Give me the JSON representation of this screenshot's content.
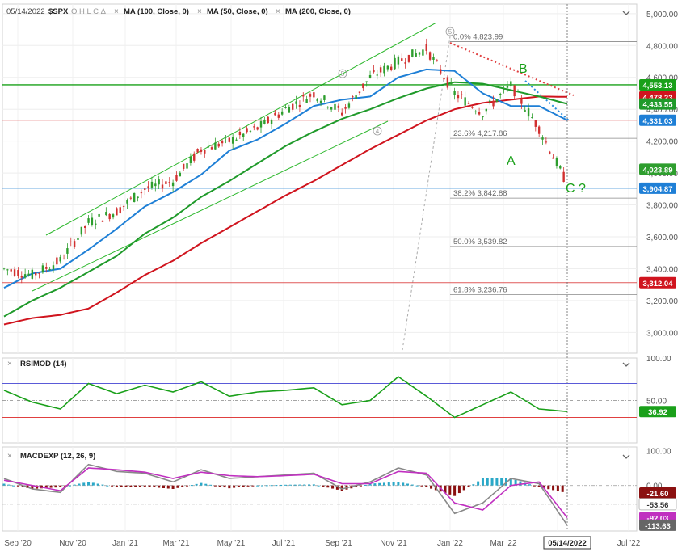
{
  "header": {
    "date": "05/14/2022",
    "symbol": "$SPX",
    "ohlc": "O H L C Δ",
    "close_x": "×",
    "ma100": "MA (100, Close, 0)",
    "ma50": "MA (50, Close, 0)",
    "ma200": "MA (200, Close, 0)",
    "chevron": "chevron-down-icon"
  },
  "colors": {
    "price_up": "#2e9e2e",
    "price_down": "#d23030",
    "ma50": "#1e7fd6",
    "ma100": "#1f9a2a",
    "ma200": "#d0141e",
    "hline_green": "#19a019",
    "hline_red": "#e05a5a",
    "hline_blue": "#3a8fd8",
    "rsi": "#1aa01a",
    "rsi_ob": "#5a5ad8",
    "rsi_os": "#e04040",
    "macd": "#888888",
    "signal": "#c030c0"
  },
  "main_axis": {
    "ticks": [
      "5,000.00",
      "4,800.00",
      "4,600.00",
      "4,400.00",
      "4,200.00",
      "4,000.00",
      "3,800.00",
      "3,600.00",
      "3,400.00",
      "3,200.00",
      "3,000.00"
    ],
    "tick_values": [
      5000,
      4800,
      4600,
      4400,
      4200,
      4000,
      3800,
      3600,
      3400,
      3200,
      3000
    ],
    "ylim": [
      2870,
      5060
    ]
  },
  "x_axis": {
    "labels": [
      "Sep '20",
      "Nov '20",
      "Jan '21",
      "Mar '21",
      "May '21",
      "Jul '21",
      "Sep '21",
      "Nov '21",
      "Jan '22",
      "Mar '22",
      "May '22",
      "Jul '22"
    ],
    "cursor_label": "05/14/2022"
  },
  "price_tags": [
    {
      "text": "4,553.13",
      "value": 4553.13,
      "color": "#19a019"
    },
    {
      "text": "4,478.23",
      "value": 4478.23,
      "color": "#d0141e"
    },
    {
      "text": "4,433.55",
      "value": 4433.55,
      "color": "#1f9a2a"
    },
    {
      "text": "4,331.03",
      "value": 4331.03,
      "color": "#1e7fd6"
    },
    {
      "text": "4,023.89",
      "value": 4023.89,
      "color": "#2e9e2e"
    },
    {
      "text": "3,904.87",
      "value": 3904.87,
      "color": "#1e7fd6"
    },
    {
      "text": "3,312.04",
      "value": 3312.04,
      "color": "#d0141e"
    }
  ],
  "fib_levels": [
    {
      "text": "0.0% 4,823.99",
      "value": 4823.99
    },
    {
      "text": "23.6% 4,217.86",
      "value": 4217.86
    },
    {
      "text": "38.2% 3,842.88",
      "value": 3842.88
    },
    {
      "text": "50.0% 3,539.82",
      "value": 3539.82
    },
    {
      "text": "61.8% 3,236.76",
      "value": 3236.76
    }
  ],
  "annotations": {
    "wave_b": "B",
    "wave_a": "A",
    "wave_c": "C ?",
    "wave5_top": "5",
    "wave5_mid": "5",
    "wave4": "4"
  },
  "rsi_panel": {
    "title": "RSIMOD (14)",
    "ticks": [
      "100.00",
      "50.00"
    ],
    "current": "36.92",
    "overbought": 70,
    "oversold": 30,
    "ylim": [
      0,
      100
    ]
  },
  "macd_panel": {
    "title": "MACDEXP (12, 26, 9)",
    "ticks": [
      "100.00",
      "0.00"
    ],
    "tags": [
      {
        "text": "-21.60",
        "color": "#8b1010"
      },
      {
        "text": "-53.56",
        "color": "#ffffff"
      },
      {
        "text": "-92.03",
        "color": "#c030c0"
      },
      {
        "text": "-113.63",
        "color": "#666666"
      }
    ],
    "ylim": [
      -130,
      110
    ]
  },
  "chart_data": {
    "type": "line",
    "title": "$SPX",
    "x": [
      "Sep '20",
      "Oct '20",
      "Nov '20",
      "Dec '20",
      "Jan '21",
      "Feb '21",
      "Mar '21",
      "Apr '21",
      "May '21",
      "Jun '21",
      "Jul '21",
      "Aug '21",
      "Sep '21",
      "Oct '21",
      "Nov '21",
      "Dec '21",
      "Jan '22",
      "Feb '22",
      "Mar '22",
      "Apr '22",
      "May '22"
    ],
    "series": [
      {
        "name": "$SPX",
        "values": [
          3400,
          3360,
          3450,
          3690,
          3760,
          3900,
          3950,
          4150,
          4200,
          4280,
          4400,
          4500,
          4380,
          4600,
          4700,
          4780,
          4500,
          4380,
          4550,
          4280,
          3930
        ]
      },
      {
        "name": "MA (50, Close, 0)",
        "values": [
          3280,
          3370,
          3400,
          3520,
          3650,
          3790,
          3880,
          3990,
          4140,
          4210,
          4310,
          4420,
          4460,
          4480,
          4600,
          4650,
          4640,
          4500,
          4420,
          4420,
          4331
        ]
      },
      {
        "name": "MA (100, Close, 0)",
        "values": [
          3100,
          3200,
          3280,
          3380,
          3480,
          3620,
          3720,
          3850,
          3950,
          4060,
          4170,
          4260,
          4340,
          4400,
          4470,
          4530,
          4570,
          4560,
          4520,
          4480,
          4434
        ]
      },
      {
        "name": "MA (200, Close, 0)",
        "values": [
          3050,
          3090,
          3110,
          3150,
          3250,
          3360,
          3450,
          3560,
          3660,
          3760,
          3860,
          3950,
          4050,
          4150,
          4240,
          4330,
          4400,
          4440,
          4460,
          4480,
          4478
        ]
      }
    ],
    "ylim": [
      2870,
      5060
    ],
    "rsi": [
      62,
      48,
      40,
      70,
      58,
      68,
      60,
      72,
      55,
      60,
      62,
      65,
      45,
      50,
      78,
      55,
      30,
      45,
      60,
      40,
      36.92
    ],
    "macd": [
      20,
      -10,
      -20,
      60,
      40,
      35,
      10,
      45,
      20,
      25,
      30,
      35,
      -10,
      10,
      50,
      30,
      -80,
      -50,
      20,
      5,
      -113.63
    ],
    "macd_signal": [
      15,
      0,
      -15,
      50,
      45,
      38,
      20,
      38,
      28,
      25,
      28,
      32,
      5,
      5,
      40,
      35,
      -50,
      -70,
      0,
      10,
      -92.03
    ],
    "macd_hist": [
      5,
      -10,
      -5,
      10,
      -5,
      -3,
      -10,
      7,
      -8,
      0,
      2,
      3,
      -15,
      5,
      10,
      -5,
      -30,
      20,
      20,
      -5,
      -21.6
    ]
  }
}
